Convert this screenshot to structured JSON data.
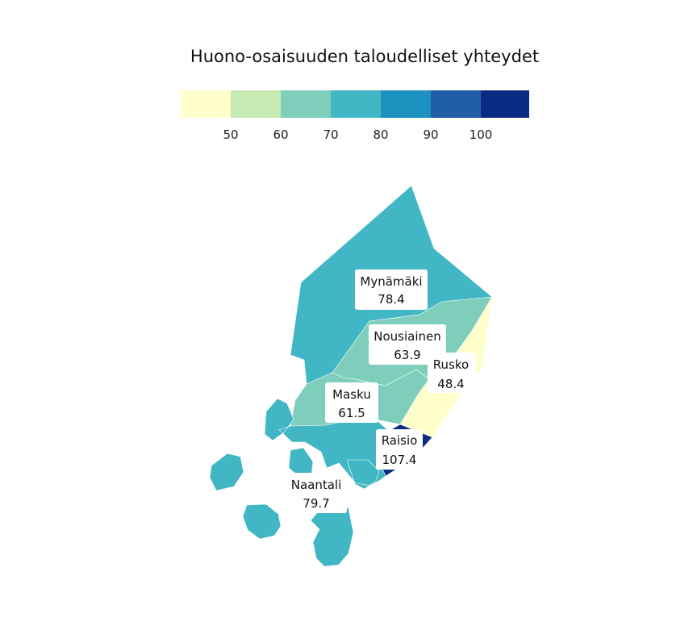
{
  "title": "Huono-osaisuuden taloudelliset yhteydet",
  "legend": {
    "colors": [
      "#ffffcc",
      "#c7e9b4",
      "#7fcdbb",
      "#41b6c4",
      "#1d91c0",
      "#225ea8",
      "#0c2c84"
    ],
    "ticks": [
      "50",
      "60",
      "70",
      "80",
      "90",
      "100"
    ]
  },
  "municipalities": [
    {
      "name": "Mynämäki",
      "value": "78.4",
      "color": "#41b6c4"
    },
    {
      "name": "Nousiainen",
      "value": "63.9",
      "color": "#7fcdbb"
    },
    {
      "name": "Rusko",
      "value": "48.4",
      "color": "#ffffcc"
    },
    {
      "name": "Masku",
      "value": "61.5",
      "color": "#7fcdbb"
    },
    {
      "name": "Raisio",
      "value": "107.4",
      "color": "#0c2c84"
    },
    {
      "name": "Naantali",
      "value": "79.7",
      "color": "#41b6c4"
    }
  ]
}
